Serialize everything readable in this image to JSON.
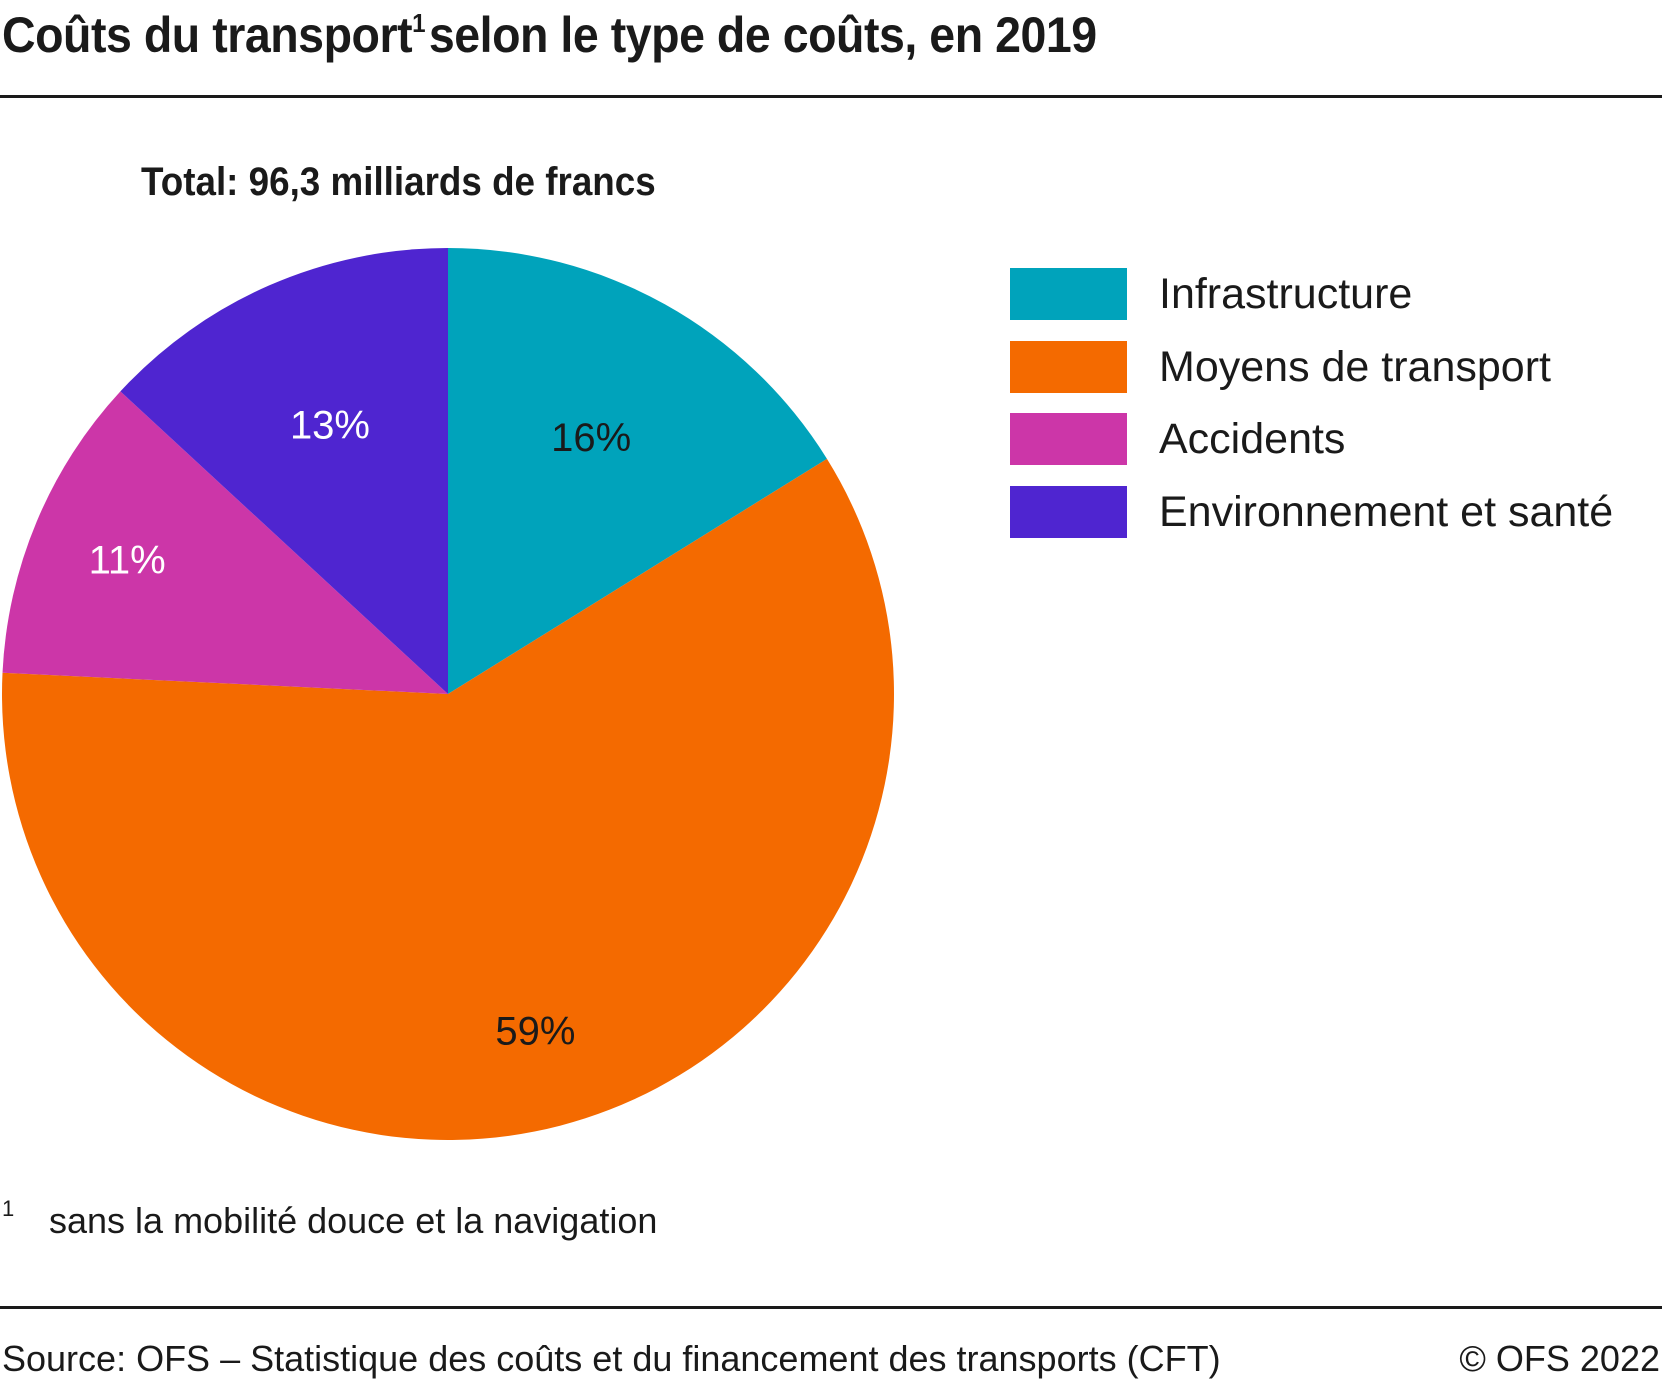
{
  "title": {
    "text": "Coûts du transport",
    "superscript": "1",
    "text_after": "selon le type de coûts, en 2019"
  },
  "subtitle": "Total: 96,3 milliards de francs",
  "footnote": {
    "marker": "1",
    "text": "sans la mobilité douce et la navigation"
  },
  "source": "Source: OFS – Statistique des coûts et du financement des transports (CFT)",
  "copyright": "© OFS 2022",
  "chart_data": {
    "type": "pie",
    "title": "Coûts du transport selon le type de coûts, en 2019",
    "subtitle": "Total: 96,3 milliards de francs",
    "unit": "%",
    "start_angle": "12 o'clock",
    "direction": "clockwise",
    "legend_position": "right",
    "slices": [
      {
        "label": "Infrastructure",
        "value": 16,
        "display": "16%",
        "color": "#00A3BB",
        "label_color": "#1a1a1a"
      },
      {
        "label": "Moyens de transport",
        "value": 59,
        "display": "59%",
        "color": "#F46A00",
        "label_color": "#1a1a1a"
      },
      {
        "label": "Accidents",
        "value": 11,
        "display": "11%",
        "color": "#CC36A8",
        "label_color": "#ffffff"
      },
      {
        "label": "Environnement et santé",
        "value": 13,
        "display": "13%",
        "color": "#4F25D0",
        "label_color": "#ffffff"
      }
    ]
  }
}
